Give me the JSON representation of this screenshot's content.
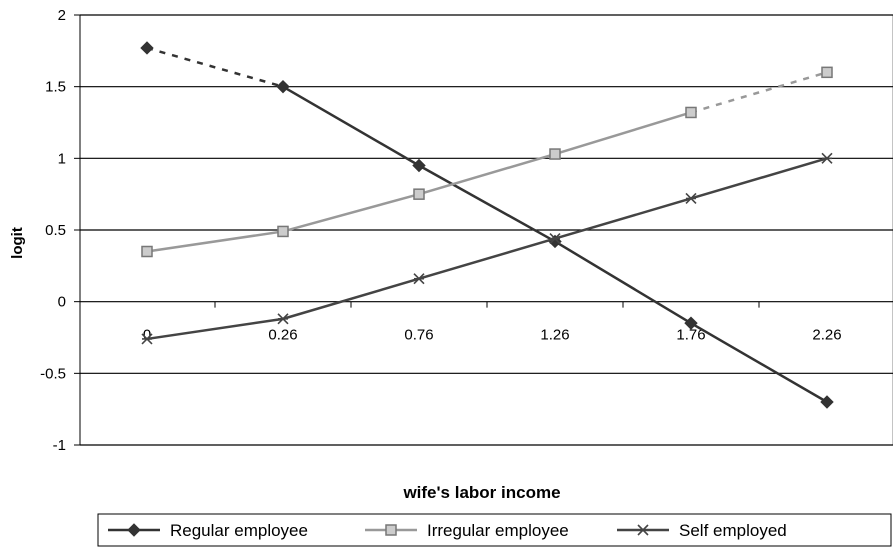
{
  "chart_data": {
    "type": "line",
    "title": "",
    "xlabel": "wife's labor income",
    "ylabel": "logit",
    "categories": [
      "0",
      "0.26",
      "0.76",
      "1.26",
      "1.76",
      "2.26"
    ],
    "ylim": [
      -1,
      2
    ],
    "yticks": [
      "2",
      "1.5",
      "1",
      "0.5",
      "0",
      "-0.5",
      "-1"
    ],
    "grid": true,
    "legend_position": "bottom",
    "series": [
      {
        "name": "Regular employee",
        "values": [
          1.77,
          1.5,
          0.95,
          0.42,
          -0.15,
          -0.7
        ],
        "dashed_segments": [
          0
        ],
        "color": "#333333",
        "marker": "diamond"
      },
      {
        "name": "Irregular employee",
        "values": [
          0.35,
          0.49,
          0.75,
          1.03,
          1.32,
          1.6
        ],
        "dashed_segments": [
          4
        ],
        "color": "#999999",
        "marker": "square"
      },
      {
        "name": "Self employed",
        "values": [
          -0.26,
          -0.12,
          0.16,
          0.44,
          0.72,
          1.0
        ],
        "dashed_segments": [],
        "color": "#444444",
        "marker": "x-star"
      }
    ]
  }
}
